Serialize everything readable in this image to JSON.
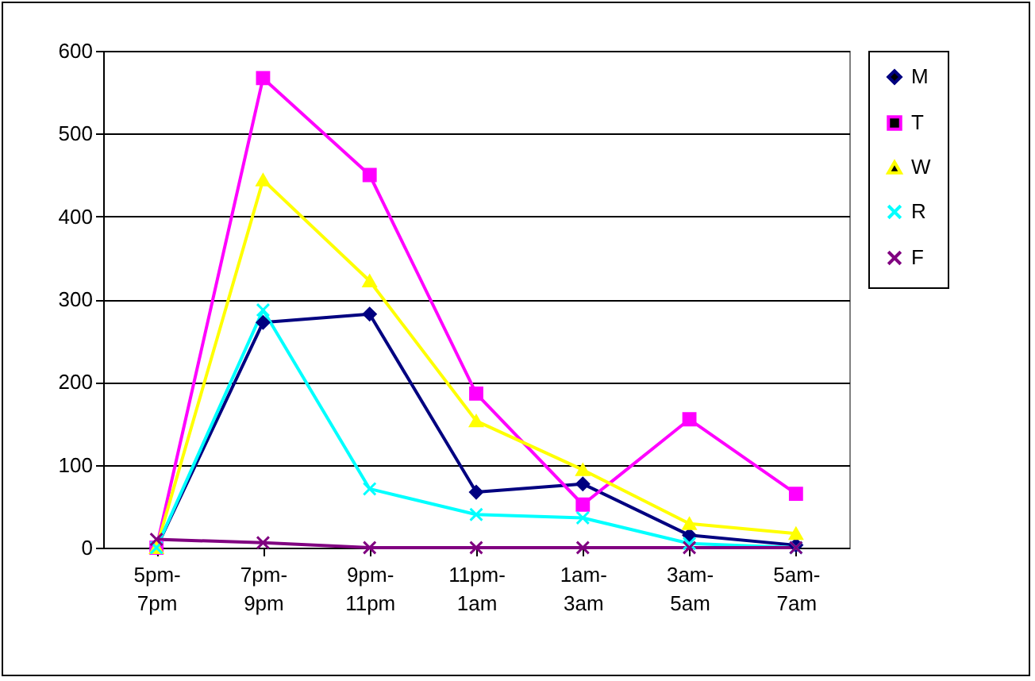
{
  "chart_data": {
    "type": "line",
    "categories": [
      "5pm-7pm",
      "7pm-9pm",
      "9pm-11pm",
      "11pm-1am",
      "1am-3am",
      "3am-5am",
      "5am-7am"
    ],
    "series": [
      {
        "name": "M",
        "color": "#000080",
        "marker": "diamond",
        "values": [
          0,
          272,
          282,
          67,
          77,
          15,
          3
        ]
      },
      {
        "name": "T",
        "color": "#ff00ff",
        "marker": "square",
        "values": [
          0,
          567,
          450,
          186,
          52,
          155,
          65
        ]
      },
      {
        "name": "W",
        "color": "#ffff00",
        "marker": "triangle",
        "values": [
          0,
          444,
          322,
          153,
          94,
          29,
          17
        ]
      },
      {
        "name": "R",
        "color": "#00ffff",
        "marker": "cross",
        "values": [
          0,
          287,
          71,
          40,
          36,
          5,
          0
        ]
      },
      {
        "name": "F",
        "color": "#800080",
        "marker": "cross",
        "values": [
          10,
          6,
          0,
          0,
          0,
          0,
          0
        ]
      }
    ],
    "ylim": [
      0,
      600
    ],
    "yticks": [
      0,
      100,
      200,
      300,
      400,
      500,
      600
    ],
    "grid": "y",
    "legend": "right"
  }
}
